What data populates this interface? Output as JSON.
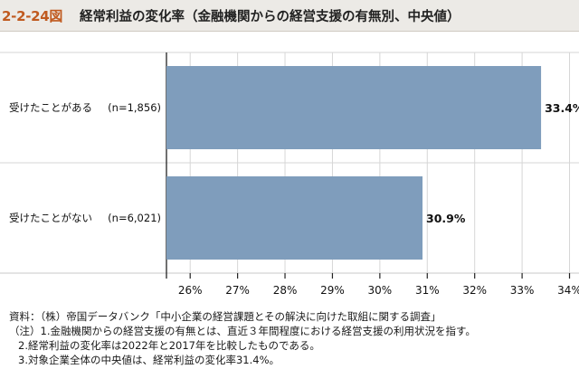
{
  "header": {
    "figure_number": "2-2-24図",
    "title": "経常利益の変化率（金融機関からの経営支援の有無別、中央値）"
  },
  "chart_data": {
    "type": "bar",
    "orientation": "horizontal",
    "categories": [
      "受けたことがある",
      "受けたことがない"
    ],
    "sample_sizes": [
      "(n=1,856)",
      "(n=6,021)"
    ],
    "values": [
      33.4,
      30.9
    ],
    "value_labels": [
      "33.4%",
      "30.9%"
    ],
    "xlim": [
      25.5,
      34.2
    ],
    "xticks": [
      26,
      27,
      28,
      29,
      30,
      31,
      32,
      33,
      34
    ],
    "xtick_labels": [
      "26%",
      "27%",
      "28%",
      "29%",
      "30%",
      "31%",
      "32%",
      "33%",
      "34%"
    ],
    "grid": "vertical",
    "bar_color": "#7f9dbc",
    "title": "",
    "xlabel": "",
    "ylabel": ""
  },
  "notes": {
    "source": "資料：（株）帝国データバンク「中小企業の経営課題とその解決に向けた取組に関する調査」",
    "note1": "（注）1.金融機関からの経営支援の有無とは、直近３年間程度における経営支援の利用状況を指す。",
    "note2": "2.経常利益の変化率は2022年と2017年を比較したものである。",
    "note3": "3.対象企業全体の中央値は、経常利益の変化率31.4%。"
  }
}
